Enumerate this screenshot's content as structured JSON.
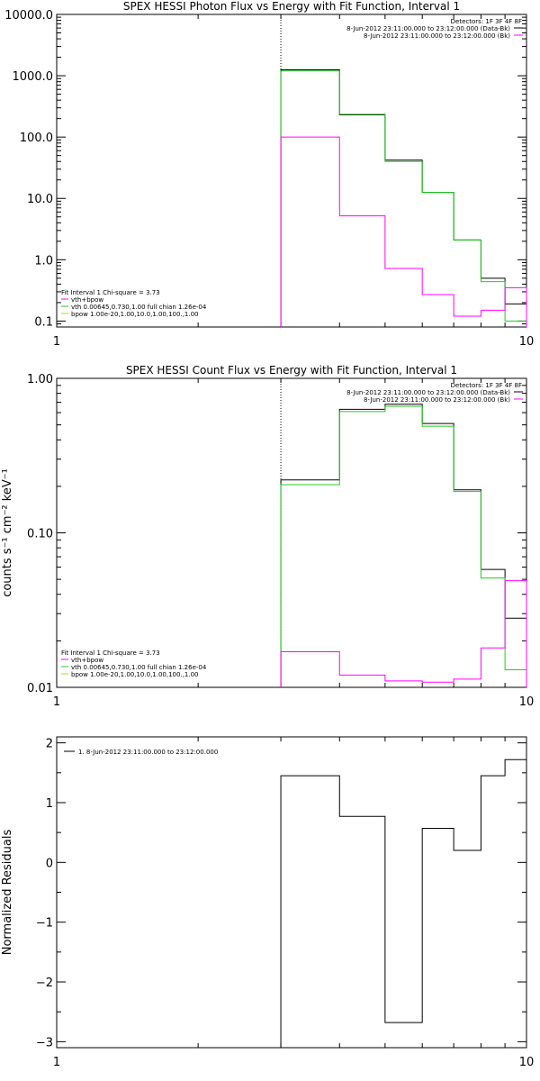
{
  "colors": {
    "data": "#000000",
    "total": "#ff00ff",
    "vth": "#22cc22",
    "bpow": "#cccc00",
    "frame": "#000000"
  },
  "chart_data": [
    {
      "id": "photon",
      "type": "line",
      "title": "SPEX HESSI Photon Flux vs Energy with Fit Function, Interval 1",
      "ylabel": "",
      "xscale": "log",
      "yscale": "log",
      "xlim": [
        1,
        10
      ],
      "ylim": [
        0.08,
        10000
      ],
      "xticks": [
        1,
        10
      ],
      "xtick_labels": [
        "1",
        "10"
      ],
      "yticks": [
        0.1,
        1,
        10,
        100,
        1000,
        10000
      ],
      "ytick_labels": [
        "0.1",
        "1.0",
        "10.0",
        "100.0",
        "1000.0",
        "10000.0"
      ],
      "vline_x": 3,
      "legend_top": [
        "Detectors: 1F 3F 4F 8F",
        "8-Jun-2012 23:11:00.000 to 23:12:00.000 (Data-Bk)",
        "8-Jun-2012 23:11:00.000 to 23:12:00.000 (Bk)"
      ],
      "legend_top_colors": [
        "#000000",
        "#000000",
        "#ff00ff"
      ],
      "legend_bottom": [
        "Fit Interval 1   Chi-square = 3.73",
        "vth+bpow",
        "vth 0.00645,0.730,1.00  full chian 1.26e-04",
        "bpow 1.00e-20,1.00,10.0,1.00,100.,1.00"
      ],
      "legend_bottom_colors": [
        "#000000",
        "#ff00ff",
        "#22cc22",
        "#cccc00"
      ],
      "bin_edges": [
        3,
        4,
        5,
        6,
        7,
        8,
        9,
        10
      ],
      "series": [
        {
          "name": "8-Jun-2012 23:11:00.000 to 23:12:00.000 (Data-Bk)",
          "color": "#000000",
          "values": [
            1250,
            230,
            42,
            12.5,
            2.1,
            0.5,
            0.19
          ]
        },
        {
          "name": "vth",
          "color": "#22cc22",
          "values": [
            1200,
            235,
            40,
            12.5,
            2.1,
            0.44,
            0.1
          ]
        },
        {
          "name": "8-Jun-2012 23:11:00.000 to 23:12:00.000 (Bk)",
          "color": "#ff00ff",
          "values": [
            100,
            5.2,
            0.72,
            0.27,
            0.12,
            0.15,
            0.35
          ]
        }
      ]
    },
    {
      "id": "count",
      "type": "line",
      "title": "SPEX HESSI Count Flux vs Energy with Fit Function, Interval 1",
      "ylabel": "counts s⁻¹ cm⁻² keV⁻¹",
      "xscale": "log",
      "yscale": "log",
      "xlim": [
        1,
        10
      ],
      "ylim": [
        0.01,
        1
      ],
      "xticks": [
        1,
        10
      ],
      "xtick_labels": [
        "1",
        "10"
      ],
      "yticks": [
        0.01,
        0.1,
        1
      ],
      "ytick_labels": [
        "0.01",
        "0.10",
        "1.00"
      ],
      "vline_x": 3,
      "legend_top": [
        "Detectors: 1F 3F 4F 8F",
        "8-Jun-2012 23:11:00.000 to 23:12:00.000 (Data-Bk)",
        "8-Jun-2012 23:11:00.000 to 23:12:00.000 (Bk)"
      ],
      "legend_top_colors": [
        "#000000",
        "#000000",
        "#ff00ff"
      ],
      "legend_bottom": [
        "Fit Interval 1   Chi-square = 3.73",
        "vth+bpow",
        "vth 0.00645,0.730,1.00  full chian 1.26e-04",
        "bpow 1.00e-20,1.00,10.0,1.00,100.,1.00"
      ],
      "legend_bottom_colors": [
        "#000000",
        "#ff00ff",
        "#22cc22",
        "#cccc00"
      ],
      "bin_edges": [
        3,
        4,
        5,
        6,
        7,
        8,
        9,
        10
      ],
      "series": [
        {
          "name": "8-Jun-2012 23:11:00.000 to 23:12:00.000 (Data-Bk)",
          "color": "#000000",
          "values": [
            0.22,
            0.63,
            0.68,
            0.51,
            0.19,
            0.058,
            0.028
          ]
        },
        {
          "name": "vth",
          "color": "#22cc22",
          "values": [
            0.205,
            0.61,
            0.66,
            0.49,
            0.185,
            0.051,
            0.013
          ]
        },
        {
          "name": "8-Jun-2012 23:11:00.000 to 23:12:00.000 (Bk)",
          "color": "#ff00ff",
          "values": [
            0.017,
            0.012,
            0.011,
            0.0108,
            0.0113,
            0.018,
            0.049
          ]
        }
      ]
    },
    {
      "id": "residuals",
      "type": "line",
      "title": "",
      "ylabel": "Normalized Residuals",
      "xscale": "log",
      "yscale": "linear",
      "xlim": [
        1,
        10
      ],
      "ylim": [
        -3.1,
        2.1
      ],
      "xticks": [
        1,
        10
      ],
      "xtick_labels": [
        "1",
        "10"
      ],
      "yticks": [
        -3,
        -2,
        -1,
        0,
        1,
        2
      ],
      "ytick_labels": [
        "−3",
        "−2",
        "−1",
        "0",
        "1",
        "2"
      ],
      "legend_top": [
        "1.  8-Jun-2012 23:11:00.000 to 23:12:00.000"
      ],
      "legend_top_colors": [
        "#000000"
      ],
      "bin_edges": [
        3,
        4,
        5,
        6,
        7,
        8,
        9,
        10
      ],
      "series": [
        {
          "name": "1.  8-Jun-2012 23:11:00.000 to 23:12:00.000",
          "color": "#000000",
          "values": [
            1.45,
            0.77,
            -2.68,
            0.57,
            0.2,
            1.45,
            1.72
          ]
        }
      ]
    }
  ]
}
